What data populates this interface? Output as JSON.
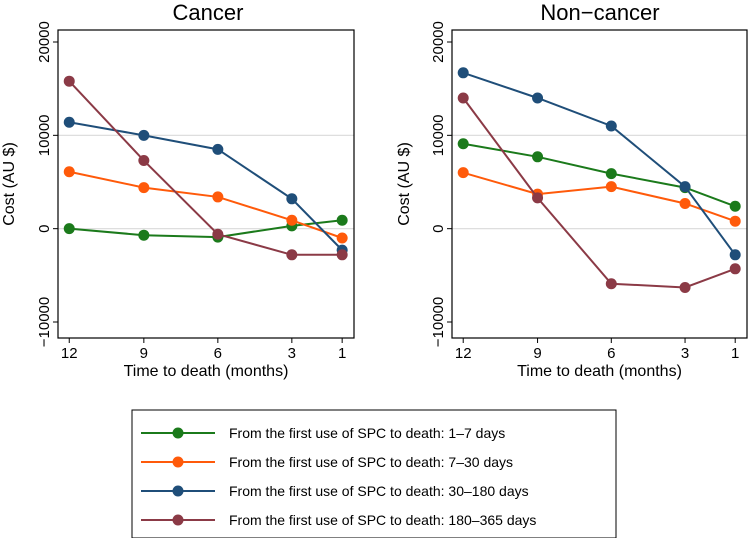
{
  "chart_data": {
    "type": "line",
    "shared_x": {
      "label": "Time to death (months)",
      "ticks": [
        12,
        9,
        6,
        3,
        1
      ]
    },
    "shared_y": {
      "label": "Cost (AU $)",
      "ticks": [
        -10000,
        0,
        10000,
        20000
      ],
      "tick_labels": [
        "−10000",
        "0",
        "10000",
        "20000"
      ],
      "ylim": [
        -10000,
        20000
      ],
      "gridlines_at": [
        0,
        10000
      ]
    },
    "legend_title": "",
    "legend_position": "bottom-center",
    "series_styles": [
      {
        "name": "From the first use of SPC to death: 1–7 days",
        "color": "#1b7a1b"
      },
      {
        "name": "From the first use of SPC to death: 7–30 days",
        "color": "#ff5a0a"
      },
      {
        "name": "From the first use of SPC to death: 30–180 days",
        "color": "#1f4e79"
      },
      {
        "name": "From the first use of SPC to death: 180–365 days",
        "color": "#8b3a46"
      }
    ],
    "panels": [
      {
        "title": "Cancer",
        "x": [
          12,
          9,
          6,
          3,
          1
        ],
        "series": [
          {
            "name": "From the first use of SPC to death: 1–7 days",
            "values": [
              0,
              -700,
              -900,
              300,
              900
            ]
          },
          {
            "name": "From the first use of SPC to death: 7–30 days",
            "values": [
              6100,
              4400,
              3400,
              900,
              -1000
            ]
          },
          {
            "name": "From the first use of SPC to death: 30–180 days",
            "values": [
              11400,
              10000,
              8500,
              3200,
              -2300
            ]
          },
          {
            "name": "From the first use of SPC to death: 180–365 days",
            "values": [
              15800,
              7300,
              -600,
              -2800,
              -2800
            ]
          }
        ]
      },
      {
        "title": "Non−cancer",
        "x": [
          12,
          9,
          6,
          3,
          1
        ],
        "series": [
          {
            "name": "From the first use of SPC to death: 1–7 days",
            "values": [
              9100,
              7700,
              5900,
              4400,
              2400
            ]
          },
          {
            "name": "From the first use of SPC to death: 7–30 days",
            "values": [
              6000,
              3700,
              4500,
              2700,
              800
            ]
          },
          {
            "name": "From the first use of SPC to death: 30–180 days",
            "values": [
              16700,
              14000,
              11000,
              4500,
              -2800
            ]
          },
          {
            "name": "From the first use of SPC to death: 180–365 days",
            "values": [
              14000,
              3300,
              -5900,
              -6300,
              -4300
            ]
          }
        ]
      }
    ]
  }
}
